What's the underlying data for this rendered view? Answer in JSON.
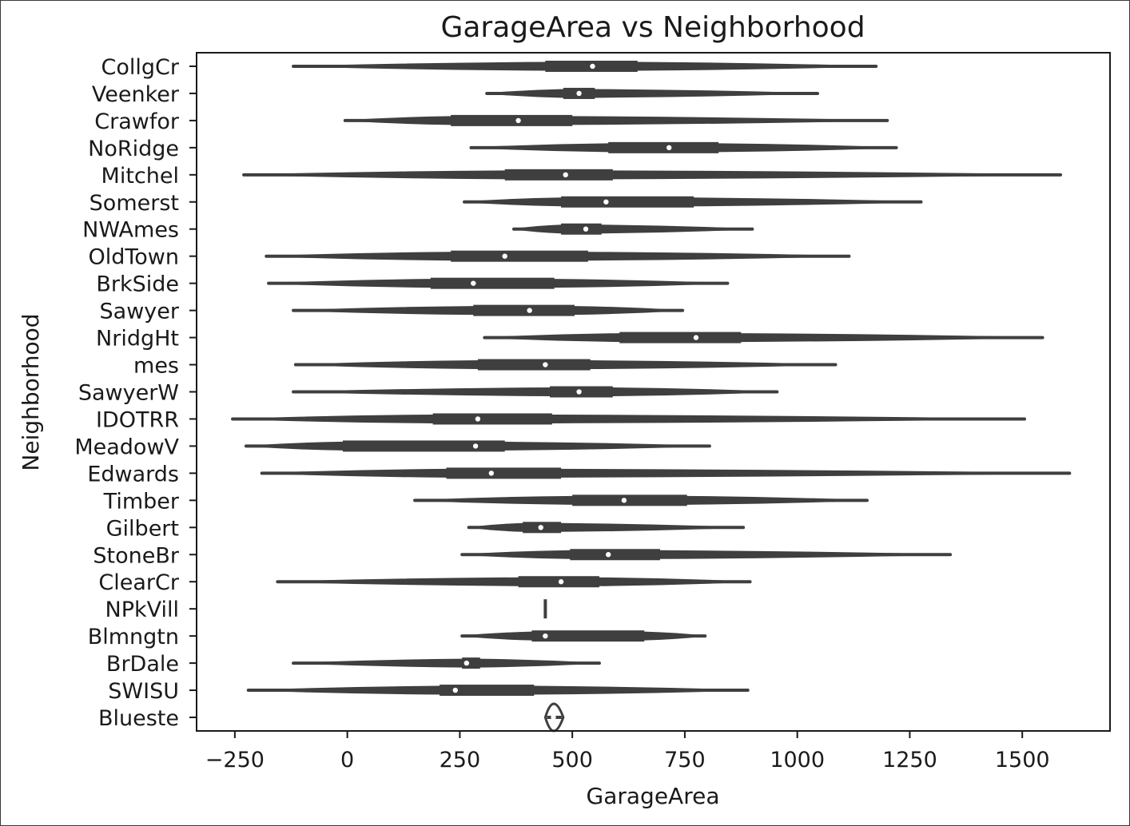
{
  "chart_data": {
    "type": "violin",
    "orientation": "horizontal",
    "title": "GarageArea vs Neighborhood",
    "xlabel": "GarageArea",
    "ylabel": "Neighborhood",
    "xlim": [
      -335,
      1695
    ],
    "xticks": [
      -250,
      0,
      250,
      500,
      750,
      1000,
      1250,
      1500
    ],
    "xtick_labels": [
      "−250",
      "0",
      "250",
      "500",
      "750",
      "1000",
      "1250",
      "1500"
    ],
    "grid": false,
    "legend": "none",
    "color": "#3f3f3f",
    "categories": [
      "CollgCr",
      "Veenker",
      "Crawfor",
      "NoRidge",
      "Mitchel",
      "Somerst",
      "NWAmes",
      "OldTown",
      "BrkSide",
      "Sawyer",
      "NridgHt",
      "mes",
      "SawyerW",
      "IDOTRR",
      "MeadowV",
      "Edwards",
      "Timber",
      "Gilbert",
      "StoneBr",
      "ClearCr",
      "NPkVill",
      "Blmngtn",
      "BrDale",
      "SWISU",
      "Blueste"
    ],
    "series": [
      {
        "min": -120,
        "q1": 440,
        "median": 545,
        "q3": 645,
        "max": 1175
      },
      {
        "min": 310,
        "q1": 480,
        "median": 515,
        "q3": 550,
        "max": 1045
      },
      {
        "min": -5,
        "q1": 230,
        "median": 380,
        "q3": 500,
        "max": 1200
      },
      {
        "min": 275,
        "q1": 580,
        "median": 715,
        "q3": 825,
        "max": 1220
      },
      {
        "min": -230,
        "q1": 350,
        "median": 485,
        "q3": 590,
        "max": 1585
      },
      {
        "min": 260,
        "q1": 475,
        "median": 575,
        "q3": 770,
        "max": 1275
      },
      {
        "min": 370,
        "q1": 475,
        "median": 530,
        "q3": 565,
        "max": 900
      },
      {
        "min": -180,
        "q1": 230,
        "median": 350,
        "q3": 535,
        "max": 1115
      },
      {
        "min": -175,
        "q1": 185,
        "median": 280,
        "q3": 460,
        "max": 845
      },
      {
        "min": -120,
        "q1": 280,
        "median": 405,
        "q3": 505,
        "max": 745
      },
      {
        "min": 305,
        "q1": 605,
        "median": 775,
        "q3": 875,
        "max": 1545
      },
      {
        "min": -115,
        "q1": 290,
        "median": 440,
        "q3": 540,
        "max": 1085
      },
      {
        "min": -120,
        "q1": 450,
        "median": 515,
        "q3": 590,
        "max": 955
      },
      {
        "min": -255,
        "q1": 190,
        "median": 290,
        "q3": 455,
        "max": 1505
      },
      {
        "min": -225,
        "q1": -10,
        "median": 285,
        "q3": 350,
        "max": 805
      },
      {
        "min": -190,
        "q1": 220,
        "median": 320,
        "q3": 475,
        "max": 1605
      },
      {
        "min": 150,
        "q1": 500,
        "median": 615,
        "q3": 755,
        "max": 1155
      },
      {
        "min": 270,
        "q1": 390,
        "median": 430,
        "q3": 475,
        "max": 880
      },
      {
        "min": 255,
        "q1": 495,
        "median": 580,
        "q3": 695,
        "max": 1340
      },
      {
        "min": -155,
        "q1": 380,
        "median": 475,
        "q3": 560,
        "max": 895
      },
      {
        "min": 440,
        "q1": 440,
        "median": 440,
        "q3": 440,
        "max": 440
      },
      {
        "min": 255,
        "q1": 410,
        "median": 440,
        "q3": 660,
        "max": 795
      },
      {
        "min": -120,
        "q1": 255,
        "median": 265,
        "q3": 295,
        "max": 560
      },
      {
        "min": -220,
        "q1": 205,
        "median": 240,
        "q3": 415,
        "max": 890
      },
      {
        "min": 440,
        "q1": 458,
        "median": 458,
        "q3": 462,
        "max": 480
      }
    ]
  }
}
